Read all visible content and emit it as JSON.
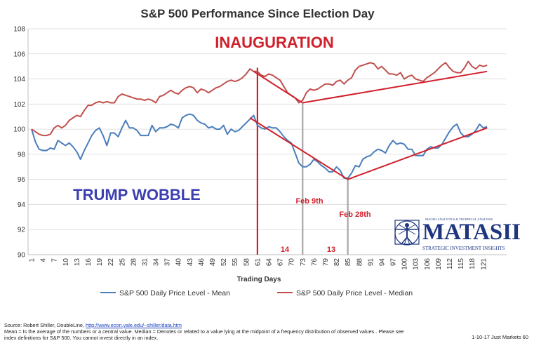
{
  "chart_data": {
    "type": "line",
    "title": "S&P 500 Performance Since Election Day",
    "xlabel": "Trading Days",
    "ylabel": "",
    "ylim": [
      90,
      108
    ],
    "yticks": [
      90,
      92,
      94,
      96,
      98,
      100,
      102,
      104,
      106,
      108
    ],
    "xlim": [
      1,
      122
    ],
    "xticks": [
      1,
      4,
      7,
      10,
      13,
      16,
      19,
      22,
      25,
      28,
      31,
      34,
      37,
      40,
      43,
      46,
      49,
      52,
      55,
      58,
      61,
      64,
      67,
      70,
      73,
      76,
      79,
      82,
      85,
      88,
      91,
      94,
      97,
      100,
      103,
      106,
      109,
      112,
      115,
      118,
      121
    ],
    "series": [
      {
        "name": "S&P 500 Daily Price Level - Mean",
        "color": "#4a7ebb",
        "points": [
          [
            1,
            100
          ],
          [
            2,
            99
          ],
          [
            3,
            98.4
          ],
          [
            4,
            98.3
          ],
          [
            5,
            98.3
          ],
          [
            6,
            98.5
          ],
          [
            7,
            98.4
          ],
          [
            8,
            99.1
          ],
          [
            9,
            98.9
          ],
          [
            10,
            98.7
          ],
          [
            11,
            98.9
          ],
          [
            12,
            98.6
          ],
          [
            13,
            98.2
          ],
          [
            14,
            97.6
          ],
          [
            15,
            98.3
          ],
          [
            16,
            98.9
          ],
          [
            17,
            99.5
          ],
          [
            18,
            99.9
          ],
          [
            19,
            100.1
          ],
          [
            20,
            99.5
          ],
          [
            21,
            98.7
          ],
          [
            22,
            99.7
          ],
          [
            23,
            99.7
          ],
          [
            24,
            99.4
          ],
          [
            25,
            100.1
          ],
          [
            26,
            100.7
          ],
          [
            27,
            100.1
          ],
          [
            28,
            100.1
          ],
          [
            29,
            99.9
          ],
          [
            30,
            99.5
          ],
          [
            31,
            99.5
          ],
          [
            32,
            99.5
          ],
          [
            33,
            100.3
          ],
          [
            34,
            99.8
          ],
          [
            35,
            100.1
          ],
          [
            36,
            100.1
          ],
          [
            37,
            100.2
          ],
          [
            38,
            100.4
          ],
          [
            39,
            100.3
          ],
          [
            40,
            100.1
          ],
          [
            41,
            100.9
          ],
          [
            42,
            101.1
          ],
          [
            43,
            101.2
          ],
          [
            44,
            101.1
          ],
          [
            45,
            100.7
          ],
          [
            46,
            100.5
          ],
          [
            47,
            100.4
          ],
          [
            48,
            100.1
          ],
          [
            49,
            100.2
          ],
          [
            50,
            100
          ],
          [
            51,
            100
          ],
          [
            52,
            100.3
          ],
          [
            53,
            99.6
          ],
          [
            54,
            100
          ],
          [
            55,
            99.8
          ],
          [
            56,
            99.9
          ],
          [
            57,
            100.2
          ],
          [
            58,
            100.5
          ],
          [
            59,
            100.8
          ],
          [
            60,
            101.1
          ],
          [
            61,
            100.3
          ],
          [
            62,
            100.1
          ],
          [
            63,
            100
          ],
          [
            64,
            100.2
          ],
          [
            65,
            100.1
          ],
          [
            66,
            100.1
          ],
          [
            67,
            99.8
          ],
          [
            68,
            99.4
          ],
          [
            69,
            99.1
          ],
          [
            70,
            98.9
          ],
          [
            71,
            98.1
          ],
          [
            72,
            97.3
          ],
          [
            73,
            97
          ],
          [
            74,
            97
          ],
          [
            75,
            97.2
          ],
          [
            76,
            97.6
          ],
          [
            77,
            97.4
          ],
          [
            78,
            97.1
          ],
          [
            79,
            96.9
          ],
          [
            80,
            96.6
          ],
          [
            81,
            96.6
          ],
          [
            82,
            97
          ],
          [
            83,
            96.7
          ],
          [
            84,
            96.1
          ],
          [
            85,
            96.1
          ],
          [
            86,
            96.5
          ],
          [
            87,
            97.1
          ],
          [
            88,
            97
          ],
          [
            89,
            97.6
          ],
          [
            90,
            97.8
          ],
          [
            91,
            97.9
          ],
          [
            92,
            98.2
          ],
          [
            93,
            98.4
          ],
          [
            94,
            98.3
          ],
          [
            95,
            98.1
          ],
          [
            96,
            98.7
          ],
          [
            97,
            99.1
          ],
          [
            98,
            98.8
          ],
          [
            99,
            98.9
          ],
          [
            100,
            98.8
          ],
          [
            101,
            98.4
          ],
          [
            102,
            98.4
          ],
          [
            103,
            97.9
          ],
          [
            104,
            97.9
          ],
          [
            105,
            97.9
          ],
          [
            106,
            98.4
          ],
          [
            107,
            98.6
          ],
          [
            108,
            98.5
          ],
          [
            109,
            98.5
          ],
          [
            110,
            98.8
          ],
          [
            111,
            99.3
          ],
          [
            112,
            99.8
          ],
          [
            113,
            100.2
          ],
          [
            114,
            100.4
          ],
          [
            115,
            99.7
          ],
          [
            116,
            99.4
          ],
          [
            117,
            99.4
          ],
          [
            118,
            99.6
          ],
          [
            119,
            99.9
          ],
          [
            120,
            100.4
          ],
          [
            121,
            100.1
          ],
          [
            122,
            100.2
          ]
        ]
      },
      {
        "name": "S&P 500 Daily Price Level - Median",
        "color": "#c0504d",
        "points": [
          [
            1,
            100
          ],
          [
            2,
            99.8
          ],
          [
            3,
            99.6
          ],
          [
            4,
            99.5
          ],
          [
            5,
            99.5
          ],
          [
            6,
            99.6
          ],
          [
            7,
            100.1
          ],
          [
            8,
            100.3
          ],
          [
            9,
            100.1
          ],
          [
            10,
            100.3
          ],
          [
            11,
            100.7
          ],
          [
            12,
            100.9
          ],
          [
            13,
            101.1
          ],
          [
            14,
            101
          ],
          [
            15,
            101.5
          ],
          [
            16,
            101.9
          ],
          [
            17,
            101.9
          ],
          [
            18,
            102.1
          ],
          [
            19,
            102.2
          ],
          [
            20,
            102.1
          ],
          [
            21,
            102.2
          ],
          [
            22,
            102.1
          ],
          [
            23,
            102.1
          ],
          [
            24,
            102.6
          ],
          [
            25,
            102.8
          ],
          [
            26,
            102.7
          ],
          [
            27,
            102.6
          ],
          [
            28,
            102.5
          ],
          [
            29,
            102.4
          ],
          [
            30,
            102.4
          ],
          [
            31,
            102.3
          ],
          [
            32,
            102.4
          ],
          [
            33,
            102.3
          ],
          [
            34,
            102.1
          ],
          [
            35,
            102.6
          ],
          [
            36,
            102.7
          ],
          [
            37,
            102.9
          ],
          [
            38,
            103.1
          ],
          [
            39,
            102.9
          ],
          [
            40,
            102.8
          ],
          [
            41,
            103.1
          ],
          [
            42,
            103.3
          ],
          [
            43,
            103.4
          ],
          [
            44,
            103.3
          ],
          [
            45,
            102.9
          ],
          [
            46,
            103.2
          ],
          [
            47,
            103.1
          ],
          [
            48,
            102.9
          ],
          [
            49,
            103.1
          ],
          [
            50,
            103.3
          ],
          [
            51,
            103.4
          ],
          [
            52,
            103.6
          ],
          [
            53,
            103.8
          ],
          [
            54,
            103.9
          ],
          [
            55,
            103.8
          ],
          [
            56,
            103.9
          ],
          [
            57,
            104.1
          ],
          [
            58,
            104.4
          ],
          [
            59,
            104.8
          ],
          [
            60,
            104.6
          ],
          [
            61,
            104.6
          ],
          [
            62,
            104.3
          ],
          [
            63,
            104.2
          ],
          [
            64,
            104.4
          ],
          [
            65,
            104.3
          ],
          [
            66,
            104.1
          ],
          [
            67,
            103.9
          ],
          [
            68,
            103.4
          ],
          [
            69,
            102.9
          ],
          [
            70,
            102.7
          ],
          [
            71,
            102.5
          ],
          [
            72,
            102.1
          ],
          [
            73,
            102.3
          ],
          [
            74,
            102.9
          ],
          [
            75,
            103.2
          ],
          [
            76,
            103.1
          ],
          [
            77,
            103.2
          ],
          [
            78,
            103.4
          ],
          [
            79,
            103.6
          ],
          [
            80,
            103.6
          ],
          [
            81,
            103.5
          ],
          [
            82,
            103.8
          ],
          [
            83,
            103.9
          ],
          [
            84,
            103.6
          ],
          [
            85,
            103.9
          ],
          [
            86,
            104.1
          ],
          [
            87,
            104.7
          ],
          [
            88,
            105
          ],
          [
            89,
            105.1
          ],
          [
            90,
            105.2
          ],
          [
            91,
            105.3
          ],
          [
            92,
            105.2
          ],
          [
            93,
            104.8
          ],
          [
            94,
            105
          ],
          [
            95,
            104.7
          ],
          [
            96,
            104.4
          ],
          [
            97,
            104.4
          ],
          [
            98,
            104.3
          ],
          [
            99,
            104.5
          ],
          [
            100,
            104
          ],
          [
            101,
            104.2
          ],
          [
            102,
            104.3
          ],
          [
            103,
            104
          ],
          [
            104,
            103.9
          ],
          [
            105,
            103.8
          ],
          [
            106,
            104.1
          ],
          [
            107,
            104.3
          ],
          [
            108,
            104.5
          ],
          [
            109,
            104.8
          ],
          [
            110,
            105.1
          ],
          [
            111,
            105.3
          ],
          [
            112,
            104.9
          ],
          [
            113,
            104.6
          ],
          [
            114,
            104.5
          ],
          [
            115,
            104.5
          ],
          [
            116,
            104.9
          ],
          [
            117,
            105.4
          ],
          [
            118,
            105
          ],
          [
            119,
            104.8
          ],
          [
            120,
            105.1
          ],
          [
            121,
            105
          ],
          [
            122,
            105.1
          ]
        ]
      }
    ],
    "annotations": {
      "inauguration_label": "INAUGURATION",
      "inauguration_day": 61,
      "wobble_label": "TRUMP WOBBLE",
      "feb9_label": "Feb 9th",
      "feb9_day": 73,
      "feb28_label": "Feb 28th",
      "feb28_day": 85,
      "span1_label": "14",
      "span2_label": "13",
      "trendlines": [
        {
          "from": [
            60,
            104.6
          ],
          "to": [
            73,
            102.1
          ]
        },
        {
          "from": [
            73,
            102.1
          ],
          "to": [
            122,
            104.6
          ]
        },
        {
          "from": [
            59,
            100.9
          ],
          "to": [
            85,
            96
          ]
        },
        {
          "from": [
            85,
            96
          ],
          "to": [
            122,
            100.1
          ]
        }
      ]
    }
  },
  "footer": {
    "source_text": "Source: Robert Shiller, DoubleLine, ",
    "source_link": "http://www.econ.yale.edu/~shiller/data.htm",
    "line2": "Mean = Is the average of the numbers or a central value. Median = Denotes or related to a value lying at the midpoint of a frequency distribution of observed values.. Please see",
    "line3": "index definitions for S&P 500. You cannot invest directly in an index.",
    "page": "1-10-17 Just Markets  60"
  },
  "logo": {
    "top": "MACRO ANALYTICS & TECHNICAL ANALYSIS",
    "name": "MATASII",
    "bottom": "STRATEGIC INVESTMENT INSIGHTS",
    "color": "#1e3680"
  }
}
